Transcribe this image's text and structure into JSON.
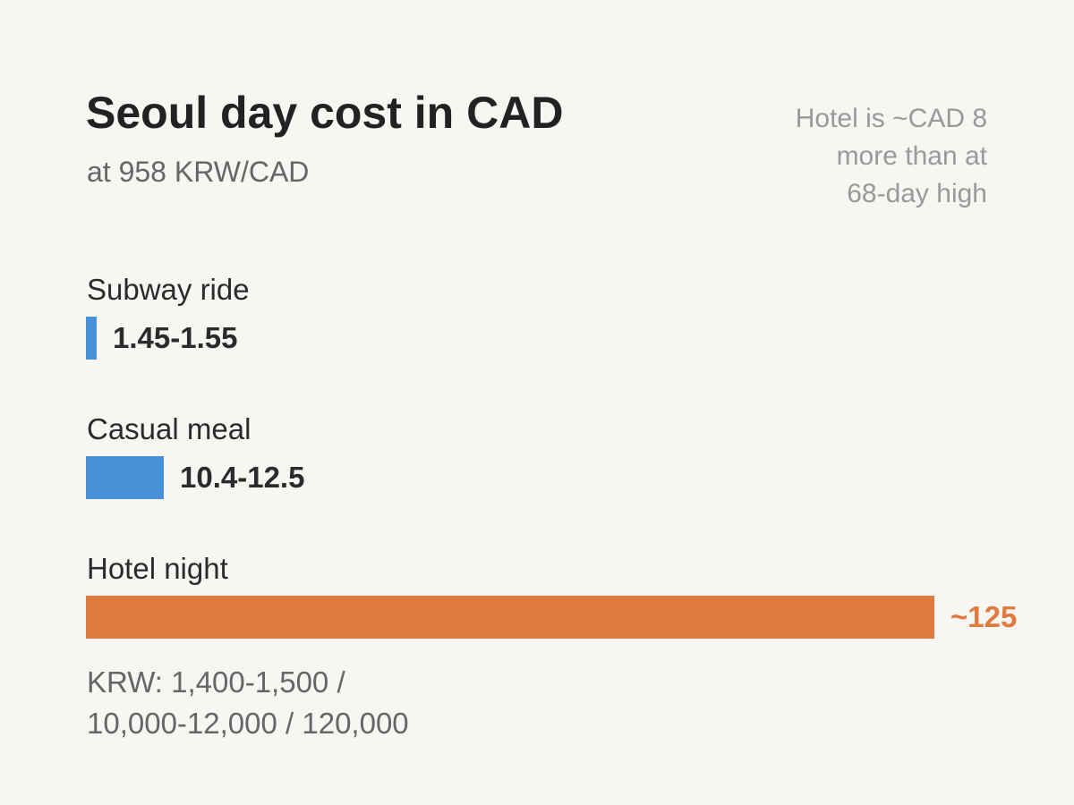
{
  "chart_data": {
    "type": "bar",
    "orientation": "horizontal",
    "title": "Seoul day cost in CAD",
    "subtitle": "at 958 KRW/CAD",
    "categories": [
      "Subway ride",
      "Casual meal",
      "Hotel night"
    ],
    "values": [
      1.5,
      11.45,
      125
    ],
    "value_labels": [
      "1.45-1.55",
      "10.4-12.5",
      "~125"
    ],
    "ranges": [
      [
        1.45,
        1.55
      ],
      [
        10.4,
        12.5
      ],
      [
        125,
        125
      ]
    ],
    "colors": [
      "#4a90d9",
      "#4a90d9",
      "#e07a3f"
    ],
    "value_label_colors": [
      "#2b2b2b",
      "#2b2b2b",
      "#e07a3f"
    ],
    "xlim": [
      0,
      125
    ],
    "grid": false,
    "annotation": {
      "lines": [
        "Hotel is ~CAD 8",
        "more than at",
        "68-day high"
      ]
    },
    "footnote": {
      "lines": [
        "KRW: 1,400-1,500 /",
        "10,000-12,000 / 120,000"
      ]
    }
  }
}
